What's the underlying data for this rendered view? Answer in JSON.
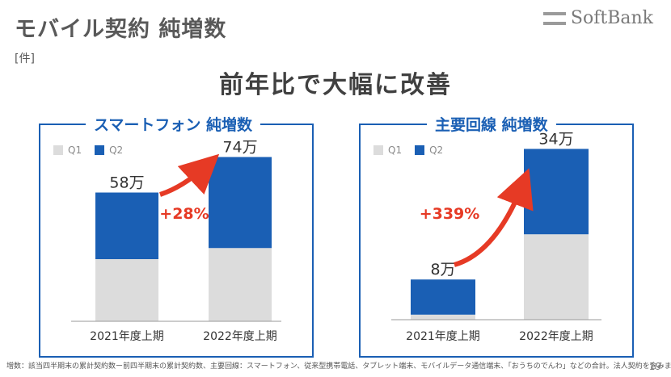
{
  "title": "モバイル契約 純増数",
  "unit": "[件]",
  "logo": "SoftBank",
  "headline": "前年比で大幅に改善",
  "colors": {
    "q1": "#dcdcdc",
    "q2": "#1a5fb4",
    "accent": "#e63a25",
    "border": "#1a5fb4"
  },
  "chart_data": [
    {
      "type": "bar",
      "title": "スマートフォン 純増数",
      "categories": [
        "2021年度上期",
        "2022年度上期"
      ],
      "series": [
        {
          "name": "Q1",
          "values": [
            28,
            33
          ]
        },
        {
          "name": "Q2",
          "values": [
            30,
            41
          ]
        }
      ],
      "totals": [
        "58万",
        "74万"
      ],
      "growth": "+28%",
      "ylim": [
        0,
        80
      ]
    },
    {
      "type": "bar",
      "title": "主要回線 純増数",
      "categories": [
        "2021年度上期",
        "2022年度上期"
      ],
      "series": [
        {
          "name": "Q1",
          "values": [
            1,
            17
          ]
        },
        {
          "name": "Q2",
          "values": [
            7,
            17
          ]
        }
      ],
      "totals": [
        "8万",
        "34万"
      ],
      "growth": "+339%",
      "ylim": [
        0,
        36
      ]
    }
  ],
  "footnote": "増数：該当四半期末の累計契約数ー前四半期末の累計契約数、主要回線：スマートフォン、従来型携帯電話、タブレット端末、モバイルデータ通信端末、「おうちのでんわ」などの合計。法人契約を含みます。",
  "page_number": "19"
}
